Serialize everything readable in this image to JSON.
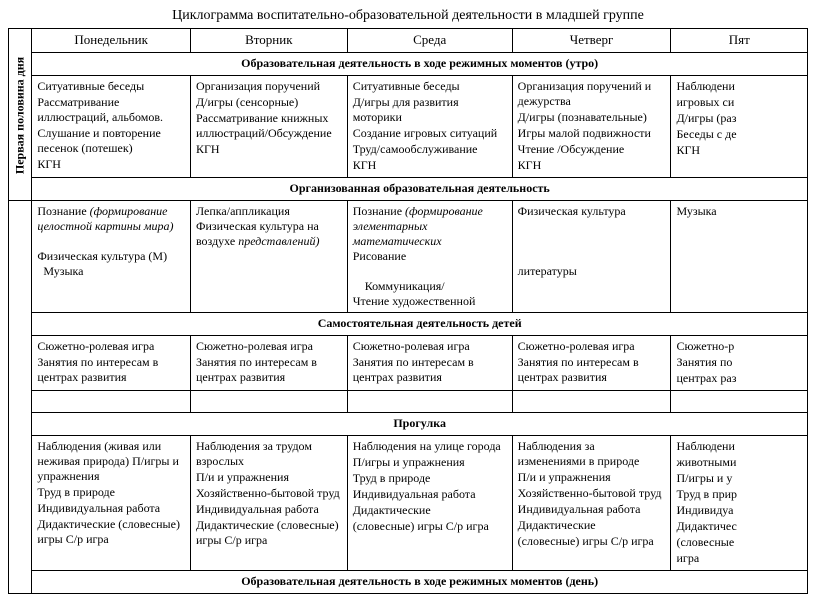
{
  "title": "Циклограмма воспитательно-образовательной деятельности в младшей группе",
  "vertical_label": "Первая половина дня",
  "days": [
    "Понедельник",
    "Вторник",
    "Среда",
    "Четверг",
    "Пят"
  ],
  "section1": "Образовательная деятельность в ходе режимных моментов (утро)",
  "row1": {
    "mon": "Ситуативные беседы\nРассматривание иллюстраций, альбомов.\nСлушание и повторение песенок (потешек)\nКГН",
    "tue": "Организация поручений\nД/игры (сенсорные)\nРассматривание книжных иллюстраций/Обсуждение\nКГН",
    "wed": "Ситуативные беседы\nД/игры для развития моторики\nСоздание игровых ситуаций\nТруд/самообслуживание\nКГН",
    "thu": "Организация поручений и дежурства\nД/игры (познавательные)\nИгры малой подвижности\nЧтение /Обсуждение\nКГН",
    "fri": "Наблюдени\nигровых си\nД/игры (раз\nБеседы с де\nКГН"
  },
  "section2": "Организованная образовательная деятельность",
  "row2": {
    "mon_html": "Познание <span class=\"italic\">(формирование целостной картины мира)</span><br><br>Физическая культура (М)<br>&nbsp;&nbsp;Музыка",
    "tue_html": "Лепка/аппликация<br>Физическая культура на воздухе <span class=\"italic\">представлений)</span>",
    "wed_html": "Познание <span class=\"italic\">(формирование элементарных математических</span><br>Рисование<br><br>&nbsp;&nbsp;&nbsp;&nbsp;Коммуникация/<br>Чтение художественной",
    "thu_html": "Физическая культура<br><br><br><br>литературы",
    "fri_html": "Музыка"
  },
  "section3": "Самостоятельная деятельность детей",
  "row3": {
    "mon": "Сюжетно-ролевая игра\nЗанятия по интересам в центрах развития",
    "tue": "Сюжетно-ролевая игра\nЗанятия по интересам в центрах развития",
    "wed": "Сюжетно-ролевая игра\nЗанятия по интересам в центрах развития",
    "thu": "Сюжетно-ролевая игра\nЗанятия по интересам в центрах развития",
    "fri": "Сюжетно-р\nЗанятия по\nцентрах раз"
  },
  "section4": "Прогулка",
  "row4": {
    "mon": "Наблюдения (живая или неживая природа) П/игры и упражнения\nТруд в природе\nИндивидуальная работа\nДидактические (словесные) игры С/р игра",
    "tue": "Наблюдения за трудом взрослых\nП/и и упражнения\nХозяйственно-бытовой труд\nИндивидуальная работа\nДидактические (словесные) игры С/р игра",
    "wed": "Наблюдения на улице города\nП/игры и упражнения\nТруд в природе\nИндивидуальная работа\nДидактические\n(словесные) игры С/р игра",
    "thu": "Наблюдения за изменениями в природе\nП/и и упражнения\nХозяйственно-бытовой труд\nИндивидуальная работа\nДидактические\n(словесные) игры С/р игра",
    "fri": "Наблюдени\nживотными\nП/игры и у\nТруд в прир\nИндивидуа\nДидактичес\n(словесные\nигра"
  },
  "section5": "Образовательная деятельность в ходе режимных моментов (день)"
}
